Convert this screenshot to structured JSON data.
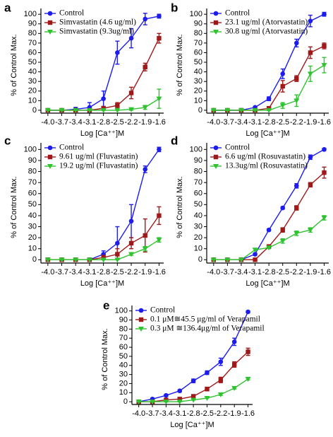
{
  "chart_data": [
    {
      "type": "scatter",
      "panel": "a",
      "xlabel": "Log [Ca⁺⁺]M",
      "ylabel": "% of Control Max.",
      "legend": "upper left",
      "xlim": [
        -4.15,
        -1.5
      ],
      "ylim": [
        -3,
        106
      ],
      "xticks": [
        {
          "value": -4,
          "label": "-4.0"
        },
        -3.7,
        -3.4,
        -3.1,
        -2.8,
        -2.5,
        -2.2,
        -1.9,
        -1.6
      ],
      "yticks": [
        0,
        10,
        20,
        30,
        40,
        50,
        60,
        70,
        80,
        90,
        100
      ],
      "x": [
        -4,
        -3.7,
        -3.4,
        -3.1,
        -2.8,
        -2.5,
        -2.2,
        -1.9,
        -1.6
      ],
      "series": [
        {
          "name": "Control",
          "color": "#1c1cf0",
          "marker": "circle",
          "values": [
            0,
            0,
            1,
            3,
            12,
            60,
            75,
            95,
            98
          ],
          "errors": [
            0,
            0,
            2,
            5,
            8,
            12,
            10,
            6,
            2
          ]
        },
        {
          "name": "Simvastatin (4.6 ug/ml)",
          "color": "#a01818",
          "marker": "square",
          "values": [
            0,
            0,
            0,
            0,
            2,
            5,
            18,
            45,
            75
          ],
          "errors": [
            0,
            0,
            0,
            0,
            2,
            3,
            6,
            4,
            5
          ]
        },
        {
          "name": "Simvastatin (9.3ug/ml)",
          "color": "#2fc42f",
          "marker": "triangle",
          "values": [
            0,
            0,
            0,
            0,
            0,
            0,
            1,
            3,
            12
          ],
          "errors": [
            0,
            0,
            0,
            0,
            0,
            0,
            1,
            2,
            10
          ]
        }
      ]
    },
    {
      "type": "scatter",
      "panel": "b",
      "xlabel": "Log [Ca⁺⁺]M",
      "ylabel": "% of Control Max.",
      "legend": "upper left",
      "xlim": [
        -4.15,
        -1.5
      ],
      "ylim": [
        -3,
        106
      ],
      "xticks": [
        {
          "value": -4,
          "label": "-4.0"
        },
        -3.7,
        -3.4,
        -3.1,
        -2.8,
        -2.5,
        -2.2,
        -1.9,
        -1.6
      ],
      "yticks": [
        0,
        10,
        20,
        30,
        40,
        50,
        60,
        70,
        80,
        90,
        100
      ],
      "x": [
        -4,
        -3.7,
        -3.4,
        -3.1,
        -2.8,
        -2.5,
        -2.2,
        -1.9,
        -1.6
      ],
      "series": [
        {
          "name": "Control",
          "color": "#1c1cf0",
          "marker": "circle",
          "values": [
            0,
            0,
            0,
            3,
            12,
            38,
            70,
            93,
            100
          ],
          "errors": [
            0,
            0,
            0,
            1,
            2,
            5,
            4,
            6,
            2
          ]
        },
        {
          "name": "23.1 ug/ml (Atorvastatin)",
          "color": "#a01818",
          "marker": "square",
          "values": [
            0,
            0,
            0,
            0,
            2,
            25,
            33,
            60,
            67
          ],
          "errors": [
            0,
            0,
            0,
            0,
            1,
            6,
            3,
            6,
            3
          ]
        },
        {
          "name": "30.8 ug/ml (Atorvastatin)",
          "color": "#2fc42f",
          "marker": "triangle",
          "values": [
            0,
            0,
            0,
            0,
            0,
            5,
            10,
            38,
            47
          ],
          "errors": [
            0,
            0,
            0,
            0,
            0,
            3,
            6,
            8,
            8
          ]
        }
      ]
    },
    {
      "type": "scatter",
      "panel": "c",
      "xlabel": "Log [Ca⁺⁺]M",
      "ylabel": "% of Control Max.",
      "legend": "upper left",
      "xlim": [
        -4.15,
        -1.5
      ],
      "ylim": [
        -3,
        106
      ],
      "xticks": [
        {
          "value": -4,
          "label": "-4.0"
        },
        -3.7,
        -3.4,
        -3.1,
        -2.8,
        -2.5,
        -2.2,
        -1.9,
        -1.6
      ],
      "yticks": [
        0,
        10,
        20,
        30,
        40,
        50,
        60,
        70,
        80,
        90,
        100
      ],
      "x": [
        -4,
        -3.7,
        -3.4,
        -3.1,
        -2.8,
        -2.5,
        -2.2,
        -1.9,
        -1.6
      ],
      "series": [
        {
          "name": "Control",
          "color": "#1c1cf0",
          "marker": "circle",
          "values": [
            0,
            0,
            0,
            0,
            5,
            15,
            35,
            82,
            100
          ],
          "errors": [
            0,
            0,
            0,
            1,
            3,
            15,
            15,
            3,
            2
          ]
        },
        {
          "name": "9.61 ug/ml (Fluvastatin)",
          "color": "#a01818",
          "marker": "square",
          "values": [
            0,
            0,
            0,
            0,
            2,
            5,
            15,
            22,
            40
          ],
          "errors": [
            0,
            0,
            0,
            1,
            2,
            5,
            5,
            15,
            8
          ]
        },
        {
          "name": "19.2 ug/ml (Fluvastatin)",
          "color": "#2fc42f",
          "marker": "triangle",
          "values": [
            0,
            0,
            0,
            0,
            0,
            0,
            5,
            10,
            18
          ],
          "errors": [
            0,
            0,
            0,
            0,
            0,
            0,
            1,
            2,
            2
          ]
        }
      ]
    },
    {
      "type": "scatter",
      "panel": "d",
      "xlabel": "Log [Ca⁺⁺]M",
      "ylabel": "% of Control Max.",
      "legend": "upper left",
      "xlim": [
        -4.15,
        -1.5
      ],
      "ylim": [
        -3,
        106
      ],
      "xticks": [
        {
          "value": -4,
          "label": "-4.0"
        },
        -3.7,
        -3.4,
        -3.1,
        -2.8,
        -2.5,
        -2.2,
        -1.9,
        -1.6
      ],
      "yticks": [
        0,
        10,
        20,
        30,
        40,
        50,
        60,
        70,
        80,
        90,
        100
      ],
      "x": [
        -4,
        -3.7,
        -3.4,
        -3.1,
        -2.8,
        -2.5,
        -2.2,
        -1.9,
        -1.6
      ],
      "series": [
        {
          "name": "Control",
          "color": "#1c1cf0",
          "marker": "circle",
          "values": [
            0,
            0,
            0,
            5,
            27,
            47,
            67,
            93,
            100
          ],
          "errors": [
            0,
            0,
            0,
            1,
            1,
            1,
            2,
            2,
            1
          ]
        },
        {
          "name": "6.6 ug/ml (Rosuvastatin)",
          "color": "#a01818",
          "marker": "square",
          "values": [
            0,
            0,
            0,
            0,
            12,
            27,
            47,
            68,
            79
          ],
          "errors": [
            0,
            0,
            0,
            0,
            1,
            2,
            2,
            2,
            5
          ]
        },
        {
          "name": "13.3ug/ml (Rosuvastatin)",
          "color": "#2fc42f",
          "marker": "triangle",
          "values": [
            0,
            0,
            0,
            9,
            11,
            17,
            24,
            27,
            38
          ],
          "errors": [
            0,
            0,
            0,
            1,
            1,
            2,
            2,
            2,
            2
          ]
        }
      ]
    },
    {
      "type": "scatter",
      "panel": "e",
      "xlabel": "Log [Ca⁺⁺]M",
      "ylabel": "% of Control Max.",
      "legend": "upper left",
      "xlim": [
        -4.15,
        -1.5
      ],
      "ylim": [
        -3,
        106
      ],
      "xticks": [
        {
          "value": -4,
          "label": "-4.0"
        },
        -3.7,
        -3.4,
        -3.1,
        -2.8,
        -2.5,
        -2.2,
        -1.9,
        -1.6
      ],
      "yticks": [
        0,
        10,
        20,
        30,
        40,
        50,
        60,
        70,
        80,
        90,
        100
      ],
      "x": [
        -4,
        -3.7,
        -3.4,
        -3.1,
        -2.8,
        -2.5,
        -2.2,
        -1.9,
        -1.6
      ],
      "series": [
        {
          "name": "Control",
          "color": "#1c1cf0",
          "marker": "circle",
          "values": [
            0,
            3,
            7,
            12,
            23,
            32,
            44,
            66,
            99
          ],
          "errors": [
            1,
            1,
            1,
            1,
            2,
            2,
            4,
            4,
            1
          ]
        },
        {
          "name": "0.1 μM≅45.5 μg/ml    of Verapamil",
          "color": "#a01818",
          "marker": "square",
          "values": [
            0,
            0,
            2,
            3,
            6,
            14,
            24,
            41,
            55
          ],
          "errors": [
            0,
            0,
            0,
            1,
            1,
            2,
            3,
            3,
            4
          ]
        },
        {
          "name": "0.3 μM ≅136.4μg/ml    of Verapamil",
          "color": "#2fc42f",
          "marker": "triangle",
          "values": [
            0,
            0,
            0,
            0,
            2,
            4,
            8,
            15,
            25
          ],
          "errors": [
            0,
            0,
            0,
            0,
            0,
            0,
            1,
            1,
            1
          ]
        }
      ]
    }
  ]
}
